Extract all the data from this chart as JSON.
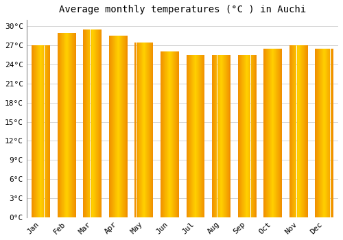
{
  "title": "Average monthly temperatures (°C ) in Auchi",
  "months": [
    "Jan",
    "Feb",
    "Mar",
    "Apr",
    "May",
    "Jun",
    "Jul",
    "Aug",
    "Sep",
    "Oct",
    "Nov",
    "Dec"
  ],
  "values": [
    27.0,
    29.0,
    29.5,
    28.5,
    27.5,
    26.0,
    25.5,
    25.5,
    25.5,
    26.5,
    27.0,
    26.5
  ],
  "bar_color_center": "#FFD000",
  "bar_color_edge": "#F09000",
  "ylim": [
    0,
    31
  ],
  "yticks": [
    0,
    3,
    6,
    9,
    12,
    15,
    18,
    21,
    24,
    27,
    30
  ],
  "ytick_labels": [
    "0°C",
    "3°C",
    "6°C",
    "9°C",
    "12°C",
    "15°C",
    "18°C",
    "21°C",
    "24°C",
    "27°C",
    "30°C"
  ],
  "bg_color": "#FFFFFF",
  "grid_color": "#CCCCCC",
  "title_fontsize": 10,
  "tick_fontsize": 8,
  "bar_width": 0.7,
  "figsize": [
    5.0,
    3.5
  ],
  "dpi": 100
}
